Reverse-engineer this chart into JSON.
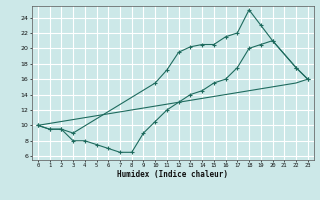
{
  "xlabel": "Humidex (Indice chaleur)",
  "ylabel": "",
  "bg_color": "#cce8e8",
  "grid_color": "#ffffff",
  "line_color": "#1e6b5e",
  "xlim": [
    -0.5,
    23.5
  ],
  "ylim": [
    5.5,
    25.5
  ],
  "yticks": [
    6,
    8,
    10,
    12,
    14,
    16,
    18,
    20,
    22,
    24
  ],
  "xticks": [
    0,
    1,
    2,
    3,
    4,
    5,
    6,
    7,
    8,
    9,
    10,
    11,
    12,
    13,
    14,
    15,
    16,
    17,
    18,
    19,
    20,
    21,
    22,
    23
  ],
  "line1_x": [
    0,
    1,
    2,
    3,
    10,
    11,
    12,
    13,
    14,
    15,
    16,
    17,
    18,
    19,
    20,
    22,
    23
  ],
  "line1_y": [
    10,
    9.5,
    9.5,
    9.0,
    15.5,
    17.2,
    19.5,
    20.2,
    20.5,
    20.5,
    21.5,
    22.0,
    25.0,
    23.0,
    21.0,
    17.5,
    16.0
  ],
  "line2_x": [
    0,
    1,
    2,
    3,
    4,
    5,
    6,
    7,
    8,
    9,
    10,
    11,
    12,
    13,
    14,
    15,
    16,
    17,
    18,
    19,
    20,
    22,
    23
  ],
  "line2_y": [
    10,
    9.5,
    9.5,
    8.0,
    8.0,
    7.5,
    7.0,
    6.5,
    6.5,
    9.0,
    10.5,
    12.0,
    13.0,
    14.0,
    14.5,
    15.5,
    16.0,
    17.5,
    20.0,
    20.5,
    21.0,
    17.5,
    16.0
  ],
  "line3_x": [
    0,
    22,
    23
  ],
  "line3_y": [
    10,
    15.5,
    16.0
  ]
}
